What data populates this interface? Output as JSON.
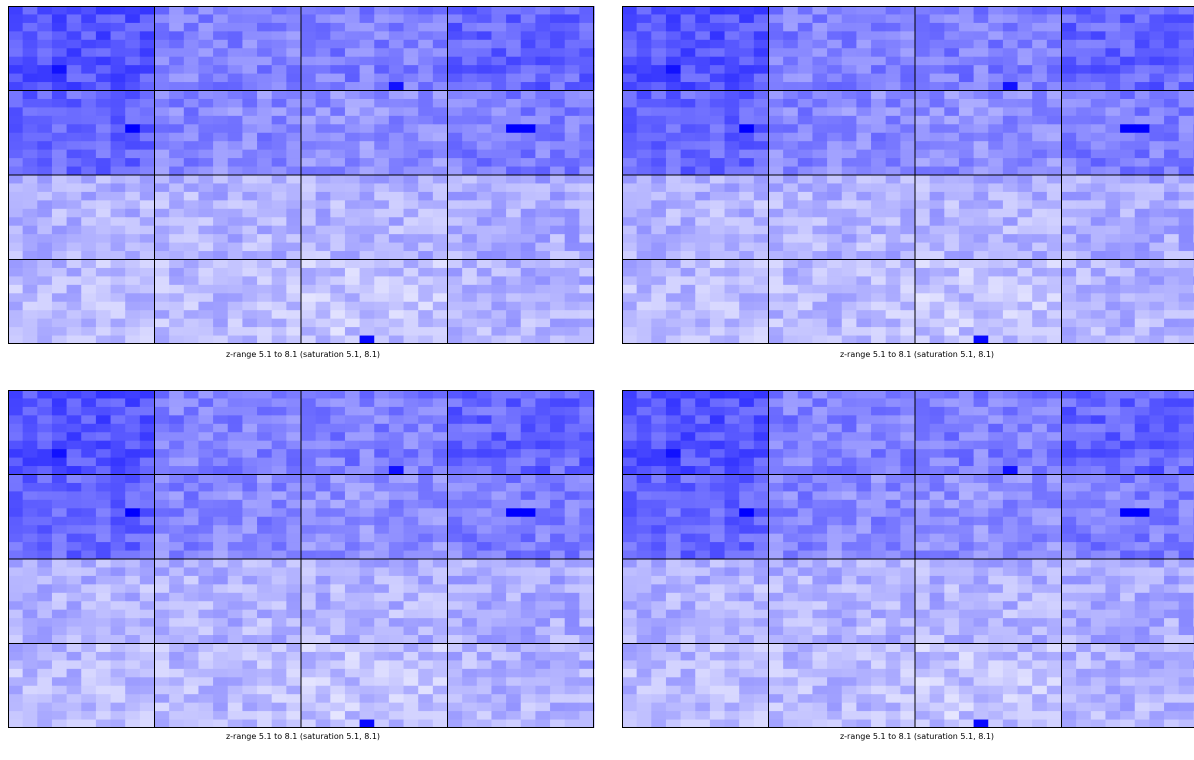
{
  "colors": {
    "low": "#ffffff",
    "high": "#0000ff",
    "grid": "#000000"
  },
  "panels": [
    {
      "caption": "z-range 5.1 to 8.1 (saturation 5.1, 8.1)"
    },
    {
      "caption": "z-range 5.1 to 8.1 (saturation 5.1, 8.1)"
    },
    {
      "caption": "z-range 5.1 to 8.1 (saturation 5.1, 8.1)"
    },
    {
      "caption": "z-range 5.1 to 8.1 (saturation 5.1, 8.1)"
    }
  ],
  "chart_data": [
    {
      "type": "heatmap",
      "title": "",
      "caption": "z-range 5.1 to 8.1 (saturation 5.1, 8.1)",
      "zlim": [
        5.1,
        8.1
      ],
      "saturation": [
        5.1,
        8.1
      ],
      "colormap": [
        "#ffffff",
        "#0000ff"
      ],
      "blocks": {
        "rows": 4,
        "cols": 4
      },
      "cells_per_block": {
        "rows": 10,
        "cols": 10
      },
      "block_levels": [
        [
          7.1,
          6.6,
          6.6,
          6.9
        ],
        [
          6.9,
          6.5,
          6.4,
          6.6
        ],
        [
          6.0,
          6.0,
          6.0,
          6.1
        ],
        [
          5.9,
          5.9,
          5.8,
          6.0
        ]
      ],
      "hotspots": [
        {
          "block_row": 0,
          "block_col": 0,
          "row": 7,
          "col": 3,
          "value": 7.9
        },
        {
          "block_row": 0,
          "block_col": 2,
          "row": 9,
          "col": 6,
          "value": 7.9
        },
        {
          "block_row": 1,
          "block_col": 0,
          "row": 4,
          "col": 8,
          "value": 8.1
        },
        {
          "block_row": 1,
          "block_col": 3,
          "row": 4,
          "col": 4,
          "value": 8.1
        },
        {
          "block_row": 1,
          "block_col": 3,
          "row": 4,
          "col": 5,
          "value": 8.1
        },
        {
          "block_row": 3,
          "block_col": 2,
          "row": 9,
          "col": 4,
          "value": 8.0
        }
      ]
    },
    {
      "type": "heatmap",
      "title": "",
      "caption": "z-range 5.1 to 8.1 (saturation 5.1, 8.1)",
      "zlim": [
        5.1,
        8.1
      ],
      "saturation": [
        5.1,
        8.1
      ],
      "colormap": [
        "#ffffff",
        "#0000ff"
      ],
      "blocks": {
        "rows": 4,
        "cols": 4
      },
      "cells_per_block": {
        "rows": 10,
        "cols": 10
      },
      "block_levels": [
        [
          7.1,
          6.6,
          6.6,
          6.9
        ],
        [
          6.9,
          6.5,
          6.4,
          6.6
        ],
        [
          6.0,
          6.0,
          6.0,
          6.1
        ],
        [
          5.9,
          5.9,
          5.8,
          6.0
        ]
      ],
      "hotspots": [
        {
          "block_row": 0,
          "block_col": 0,
          "row": 7,
          "col": 3,
          "value": 7.9
        },
        {
          "block_row": 0,
          "block_col": 2,
          "row": 9,
          "col": 6,
          "value": 7.9
        },
        {
          "block_row": 1,
          "block_col": 0,
          "row": 4,
          "col": 8,
          "value": 8.1
        },
        {
          "block_row": 1,
          "block_col": 3,
          "row": 4,
          "col": 4,
          "value": 8.1
        },
        {
          "block_row": 1,
          "block_col": 3,
          "row": 4,
          "col": 5,
          "value": 8.1
        },
        {
          "block_row": 3,
          "block_col": 2,
          "row": 9,
          "col": 4,
          "value": 8.0
        }
      ]
    },
    {
      "type": "heatmap",
      "title": "",
      "caption": "z-range 5.1 to 8.1 (saturation 5.1, 8.1)",
      "zlim": [
        5.1,
        8.1
      ],
      "saturation": [
        5.1,
        8.1
      ],
      "colormap": [
        "#ffffff",
        "#0000ff"
      ],
      "blocks": {
        "rows": 4,
        "cols": 4
      },
      "cells_per_block": {
        "rows": 10,
        "cols": 10
      },
      "block_levels": [
        [
          7.1,
          6.6,
          6.6,
          6.9
        ],
        [
          6.9,
          6.5,
          6.4,
          6.6
        ],
        [
          6.0,
          6.0,
          6.0,
          6.1
        ],
        [
          5.9,
          5.9,
          5.8,
          6.0
        ]
      ],
      "hotspots": [
        {
          "block_row": 0,
          "block_col": 0,
          "row": 7,
          "col": 3,
          "value": 7.9
        },
        {
          "block_row": 0,
          "block_col": 2,
          "row": 9,
          "col": 6,
          "value": 7.9
        },
        {
          "block_row": 1,
          "block_col": 0,
          "row": 4,
          "col": 8,
          "value": 8.1
        },
        {
          "block_row": 1,
          "block_col": 3,
          "row": 4,
          "col": 4,
          "value": 8.1
        },
        {
          "block_row": 1,
          "block_col": 3,
          "row": 4,
          "col": 5,
          "value": 8.1
        },
        {
          "block_row": 3,
          "block_col": 2,
          "row": 9,
          "col": 4,
          "value": 8.0
        }
      ]
    },
    {
      "type": "heatmap",
      "title": "",
      "caption": "z-range 5.1 to 8.1 (saturation 5.1, 8.1)",
      "zlim": [
        5.1,
        8.1
      ],
      "saturation": [
        5.1,
        8.1
      ],
      "colormap": [
        "#ffffff",
        "#0000ff"
      ],
      "blocks": {
        "rows": 4,
        "cols": 4
      },
      "cells_per_block": {
        "rows": 10,
        "cols": 10
      },
      "block_levels": [
        [
          7.1,
          6.6,
          6.6,
          6.9
        ],
        [
          6.9,
          6.5,
          6.4,
          6.6
        ],
        [
          6.0,
          6.0,
          6.0,
          6.1
        ],
        [
          5.9,
          5.9,
          5.8,
          6.0
        ]
      ],
      "hotspots": [
        {
          "block_row": 0,
          "block_col": 0,
          "row": 7,
          "col": 3,
          "value": 7.9
        },
        {
          "block_row": 0,
          "block_col": 2,
          "row": 9,
          "col": 6,
          "value": 7.9
        },
        {
          "block_row": 1,
          "block_col": 0,
          "row": 4,
          "col": 8,
          "value": 8.1
        },
        {
          "block_row": 1,
          "block_col": 3,
          "row": 4,
          "col": 4,
          "value": 8.1
        },
        {
          "block_row": 1,
          "block_col": 3,
          "row": 4,
          "col": 5,
          "value": 8.1
        },
        {
          "block_row": 3,
          "block_col": 2,
          "row": 9,
          "col": 4,
          "value": 8.0
        }
      ]
    }
  ]
}
